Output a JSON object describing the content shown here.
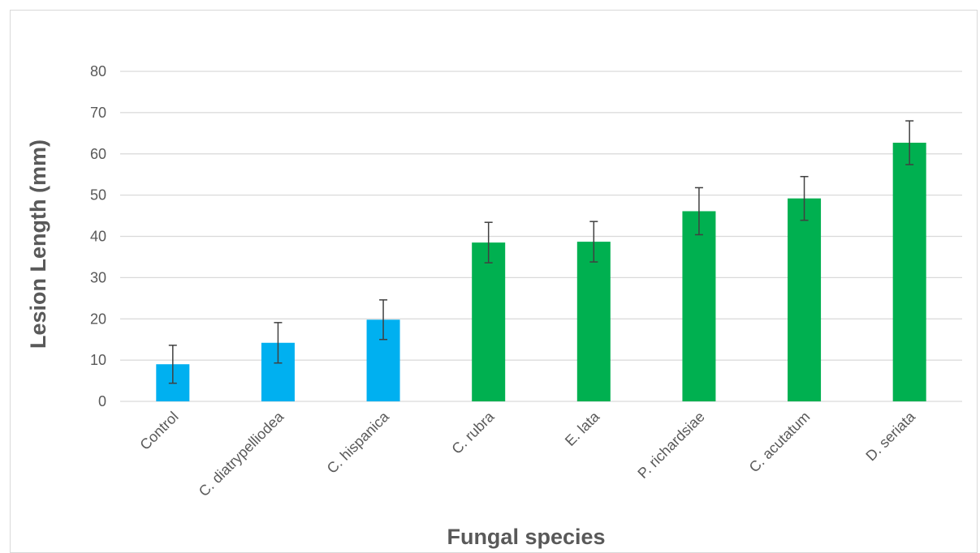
{
  "chart_data": {
    "type": "bar",
    "title": "",
    "xlabel": "Fungal species",
    "ylabel": "Lesion Length (mm)",
    "ylim": [
      0,
      80
    ],
    "yticks": [
      0,
      10,
      20,
      30,
      40,
      50,
      60,
      70,
      80
    ],
    "grid": true,
    "categories": [
      "Control",
      "C. diatrypelliodea",
      "C. hispanica",
      "C. rubra",
      "E. lata",
      "P. richardsiae",
      "C. acutatum",
      "D. seriata"
    ],
    "values": [
      9.0,
      14.2,
      19.8,
      38.5,
      38.7,
      46.1,
      49.2,
      62.7
    ],
    "errors": [
      4.6,
      4.9,
      4.8,
      4.9,
      4.9,
      5.7,
      5.3,
      5.3
    ],
    "bar_colors": [
      "#00b0f0",
      "#00b0f0",
      "#00b0f0",
      "#00b050",
      "#00b050",
      "#00b050",
      "#00b050",
      "#00b050"
    ],
    "gridline_color": "#d9d9d9",
    "text_color": "#595959",
    "error_bar_color": "#404040"
  }
}
